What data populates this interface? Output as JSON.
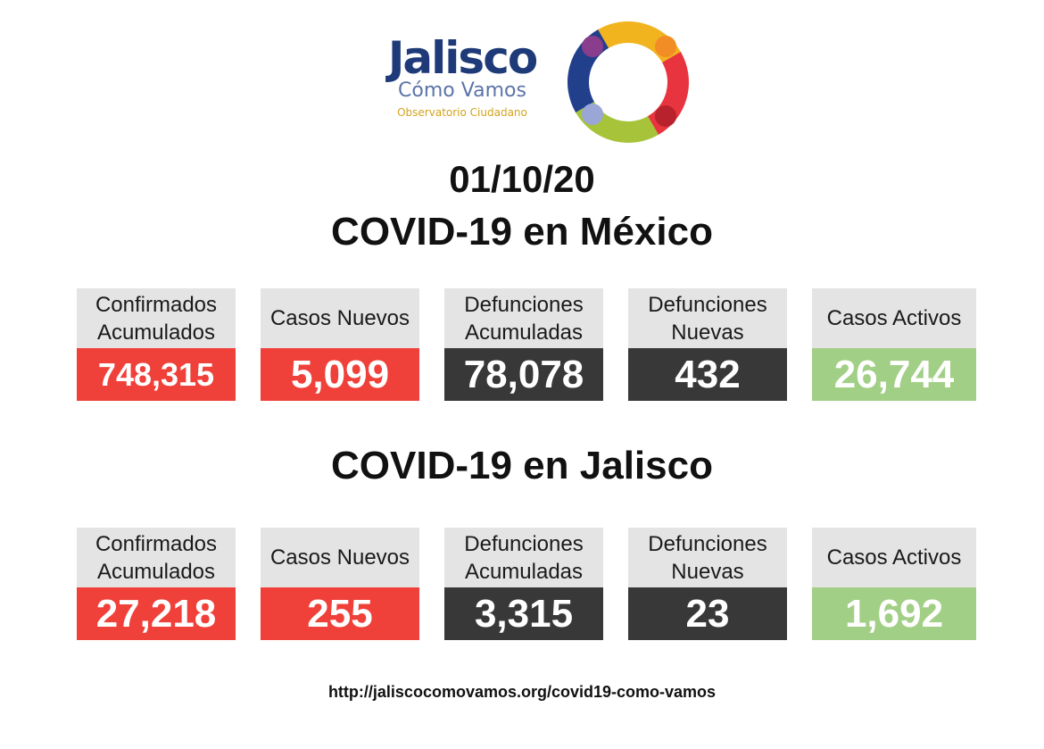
{
  "logo": {
    "name": "Jalisco",
    "subtitle": "Cómo Vamos",
    "tagline": "Observatorio Ciudadano"
  },
  "date": "01/10/20",
  "colors": {
    "red": "#f0403a",
    "dark": "#383838",
    "green": "#a2cf86",
    "label_bg": "#e4e4e4"
  },
  "sections": [
    {
      "title": "COVID-19 en México",
      "cards": [
        {
          "label_line1": "Confirmados",
          "label_line2": "Acumulados",
          "value": "748,315"
        },
        {
          "label_line1": "Casos Nuevos",
          "label_line2": "",
          "value": "5,099"
        },
        {
          "label_line1": "Defunciones",
          "label_line2": "Acumuladas",
          "value": "78,078"
        },
        {
          "label_line1": "Defunciones",
          "label_line2": "Nuevas",
          "value": "432"
        },
        {
          "label_line1": "Casos Activos",
          "label_line2": "",
          "value": "26,744"
        }
      ]
    },
    {
      "title": "COVID-19 en Jalisco",
      "cards": [
        {
          "label_line1": "Confirmados",
          "label_line2": "Acumulados",
          "value": "27,218"
        },
        {
          "label_line1": "Casos Nuevos",
          "label_line2": "",
          "value": "255"
        },
        {
          "label_line1": "Defunciones",
          "label_line2": "Acumuladas",
          "value": "3,315"
        },
        {
          "label_line1": "Defunciones",
          "label_line2": "Nuevas",
          "value": "23"
        },
        {
          "label_line1": "Casos Activos",
          "label_line2": "",
          "value": "1,692"
        }
      ]
    }
  ],
  "footer_url": "http://jaliscocomovamos.org/covid19-como-vamos"
}
